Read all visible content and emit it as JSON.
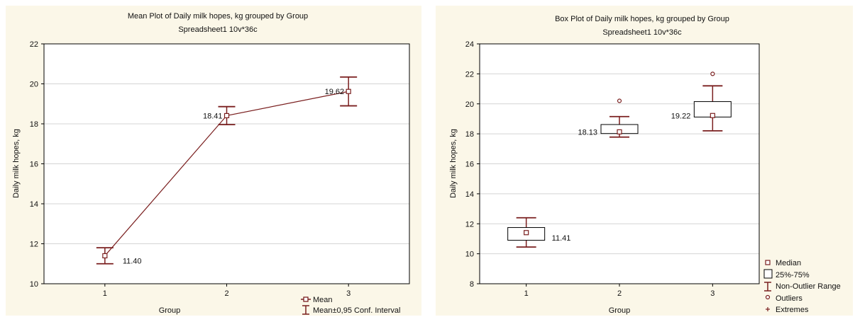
{
  "colors": {
    "panel_bg": "#fbf7e8",
    "plot_bg": "#ffffff",
    "mark": "#7a1f1f",
    "grid": "#d4d4d4",
    "axis": "#000000"
  },
  "chart_data": [
    {
      "type": "line",
      "title": "Mean Plot of Daily milk hopes, kg grouped by  Group",
      "subtitle": "Spreadsheet1 10v*36c",
      "xlabel": "Group",
      "ylabel": "Daily milk hopes, kg",
      "categories": [
        "1",
        "2",
        "3"
      ],
      "xlim": [
        0.5,
        3.5
      ],
      "ylim": [
        10,
        22
      ],
      "yticks": [
        10,
        12,
        14,
        16,
        18,
        20,
        22
      ],
      "grid": true,
      "means": [
        11.4,
        18.41,
        19.62
      ],
      "ci_low": [
        11.0,
        17.96,
        18.9
      ],
      "ci_high": [
        11.8,
        18.86,
        20.34
      ],
      "value_labels": [
        "11.40",
        "18.41",
        "19.62"
      ],
      "legend_position": "bottom-right",
      "legend": [
        "Mean",
        "Mean±0,95 Conf. Interval"
      ]
    },
    {
      "type": "box",
      "title": "Box Plot of Daily milk hopes, kg grouped by  Group",
      "subtitle": "Spreadsheet1 10v*36c",
      "xlabel": "Group",
      "ylabel": "Daily milk hopes, kg",
      "categories": [
        "1",
        "2",
        "3"
      ],
      "xlim": [
        0.5,
        3.5
      ],
      "ylim": [
        8,
        24
      ],
      "yticks": [
        8,
        10,
        12,
        14,
        16,
        18,
        20,
        22,
        24
      ],
      "grid": true,
      "medians": [
        11.41,
        18.13,
        19.22
      ],
      "q1": [
        10.9,
        18.02,
        19.12
      ],
      "q3": [
        11.75,
        18.62,
        20.15
      ],
      "whisker_low": [
        10.45,
        17.78,
        18.2
      ],
      "whisker_high": [
        12.4,
        19.15,
        21.2
      ],
      "outliers": [
        [],
        [
          20.2
        ],
        [
          22.0
        ]
      ],
      "value_labels": [
        "11.41",
        "18.13",
        "19.22"
      ],
      "legend_position": "bottom-right",
      "legend": [
        "Median",
        "25%-75%",
        "Non-Outlier Range",
        "Outliers",
        "Extremes"
      ]
    }
  ]
}
